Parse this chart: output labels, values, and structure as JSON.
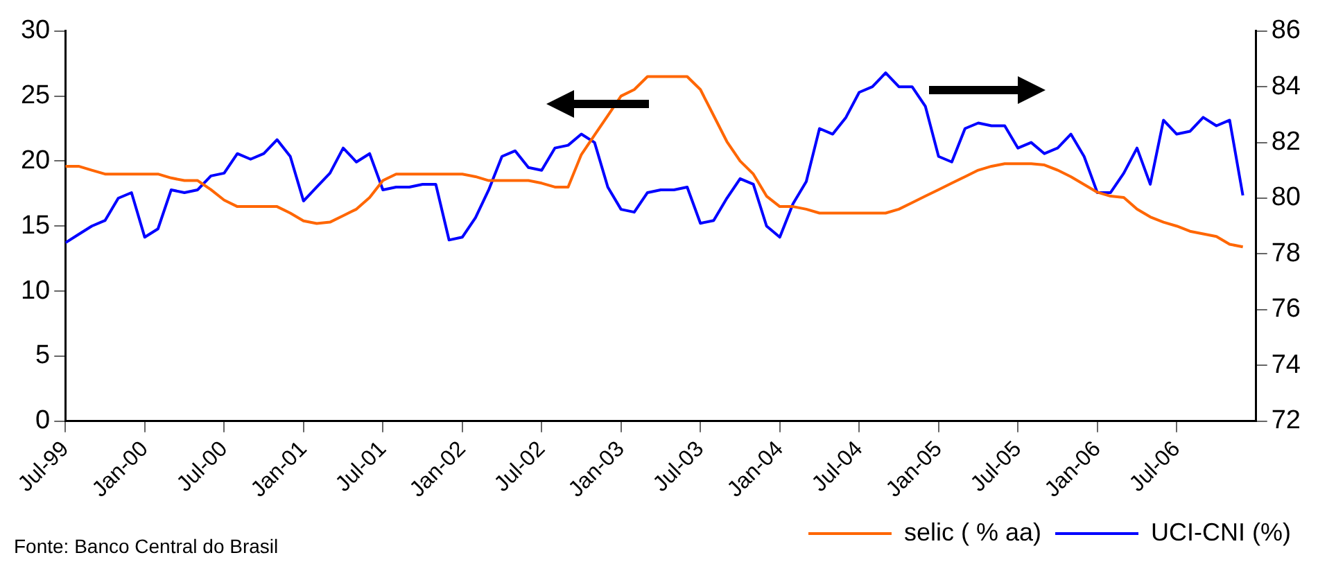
{
  "chart_data": {
    "type": "line",
    "x": [
      "1999-07",
      "1999-08",
      "1999-09",
      "1999-10",
      "1999-11",
      "1999-12",
      "2000-01",
      "2000-02",
      "2000-03",
      "2000-04",
      "2000-05",
      "2000-06",
      "2000-07",
      "2000-08",
      "2000-09",
      "2000-10",
      "2000-11",
      "2000-12",
      "2001-01",
      "2001-02",
      "2001-03",
      "2001-04",
      "2001-05",
      "2001-06",
      "2001-07",
      "2001-08",
      "2001-09",
      "2001-10",
      "2001-11",
      "2001-12",
      "2002-01",
      "2002-02",
      "2002-03",
      "2002-04",
      "2002-05",
      "2002-06",
      "2002-07",
      "2002-08",
      "2002-09",
      "2002-10",
      "2002-11",
      "2002-12",
      "2003-01",
      "2003-02",
      "2003-03",
      "2003-04",
      "2003-05",
      "2003-06",
      "2003-07",
      "2003-08",
      "2003-09",
      "2003-10",
      "2003-11",
      "2003-12",
      "2004-01",
      "2004-02",
      "2004-03",
      "2004-04",
      "2004-05",
      "2004-06",
      "2004-07",
      "2004-08",
      "2004-09",
      "2004-10",
      "2004-11",
      "2004-12",
      "2005-01",
      "2005-02",
      "2005-03",
      "2005-04",
      "2005-05",
      "2005-06",
      "2005-07",
      "2005-08",
      "2005-09",
      "2005-10",
      "2005-11",
      "2005-12",
      "2006-01",
      "2006-02",
      "2006-03",
      "2006-04",
      "2006-05",
      "2006-06",
      "2006-07",
      "2006-08",
      "2006-09",
      "2006-10",
      "2006-11",
      "2006-12"
    ],
    "series": [
      {
        "name": "selic ( % aa)",
        "color": "#ff6600",
        "values": [
          19.6,
          19.6,
          19.3,
          19.0,
          19.0,
          19.0,
          19.0,
          19.0,
          18.7,
          18.5,
          18.5,
          17.8,
          17.0,
          16.5,
          16.5,
          16.5,
          16.5,
          16.0,
          15.4,
          15.2,
          15.3,
          15.8,
          16.3,
          17.2,
          18.5,
          19.0,
          19.0,
          19.0,
          19.0,
          19.0,
          19.0,
          18.8,
          18.5,
          18.5,
          18.5,
          18.5,
          18.3,
          18.0,
          18.0,
          20.5,
          22.0,
          23.5,
          25.0,
          25.5,
          26.5,
          26.5,
          26.5,
          26.5,
          25.5,
          23.5,
          21.5,
          20.0,
          19.0,
          17.3,
          16.5,
          16.5,
          16.3,
          16.0,
          16.0,
          16.0,
          16.0,
          16.0,
          16.0,
          16.3,
          16.8,
          17.3,
          17.8,
          18.3,
          18.8,
          19.3,
          19.6,
          19.8,
          19.8,
          19.8,
          19.7,
          19.3,
          18.8,
          18.2,
          17.6,
          17.3,
          17.2,
          16.3,
          15.7,
          15.3,
          15.0,
          14.6,
          14.4,
          14.2,
          13.6,
          13.4
        ]
      },
      {
        "name": "UCI-CNI (%)",
        "color": "#0000ff",
        "axis": "y2",
        "values": [
          78.4,
          78.7,
          79.0,
          79.2,
          80.0,
          80.2,
          78.6,
          78.9,
          80.3,
          80.2,
          80.3,
          80.8,
          80.9,
          81.6,
          81.4,
          81.6,
          82.1,
          81.5,
          79.9,
          80.4,
          80.9,
          81.8,
          81.3,
          81.6,
          80.3,
          80.4,
          80.4,
          80.5,
          80.5,
          78.5,
          78.6,
          79.3,
          80.3,
          81.5,
          81.7,
          81.1,
          81.0,
          81.8,
          81.9,
          82.3,
          82.0,
          80.4,
          79.6,
          79.5,
          80.2,
          80.3,
          80.3,
          80.4,
          79.1,
          79.2,
          80.0,
          80.7,
          80.5,
          79.0,
          78.6,
          79.8,
          80.6,
          82.5,
          82.3,
          82.9,
          83.8,
          84.0,
          84.5,
          84.0,
          84.0,
          83.3,
          81.5,
          81.3,
          82.5,
          82.7,
          82.6,
          82.6,
          81.8,
          82.0,
          81.6,
          81.8,
          82.3,
          81.5,
          80.2,
          80.2,
          80.9,
          81.8,
          80.5,
          82.8,
          82.3,
          82.4,
          82.9,
          82.6,
          82.8,
          80.1
        ]
      }
    ],
    "xlim": [
      "1999-07",
      "2007-01"
    ],
    "xticks": [
      {
        "value": "1999-07",
        "label": "Jul-99"
      },
      {
        "value": "2000-01",
        "label": "Jan-00"
      },
      {
        "value": "2000-07",
        "label": "Jul-00"
      },
      {
        "value": "2001-01",
        "label": "Jan-01"
      },
      {
        "value": "2001-07",
        "label": "Jul-01"
      },
      {
        "value": "2002-01",
        "label": "Jan-02"
      },
      {
        "value": "2002-07",
        "label": "Jul-02"
      },
      {
        "value": "2003-01",
        "label": "Jan-03"
      },
      {
        "value": "2003-07",
        "label": "Jul-03"
      },
      {
        "value": "2004-01",
        "label": "Jan-04"
      },
      {
        "value": "2004-07",
        "label": "Jul-04"
      },
      {
        "value": "2005-01",
        "label": "Jan-05"
      },
      {
        "value": "2005-07",
        "label": "Jul-05"
      },
      {
        "value": "2006-01",
        "label": "Jan-06"
      },
      {
        "value": "2006-07",
        "label": "Jul-06"
      }
    ],
    "ylim": [
      0,
      30
    ],
    "yticks": [
      0,
      5,
      10,
      15,
      20,
      25,
      30
    ],
    "y2lim": [
      72,
      86
    ],
    "y2ticks": [
      72,
      74,
      76,
      78,
      80,
      82,
      84,
      86
    ],
    "legend": "bottom right",
    "annotations": [
      "Fonte: Banco Central do Brasil"
    ]
  }
}
